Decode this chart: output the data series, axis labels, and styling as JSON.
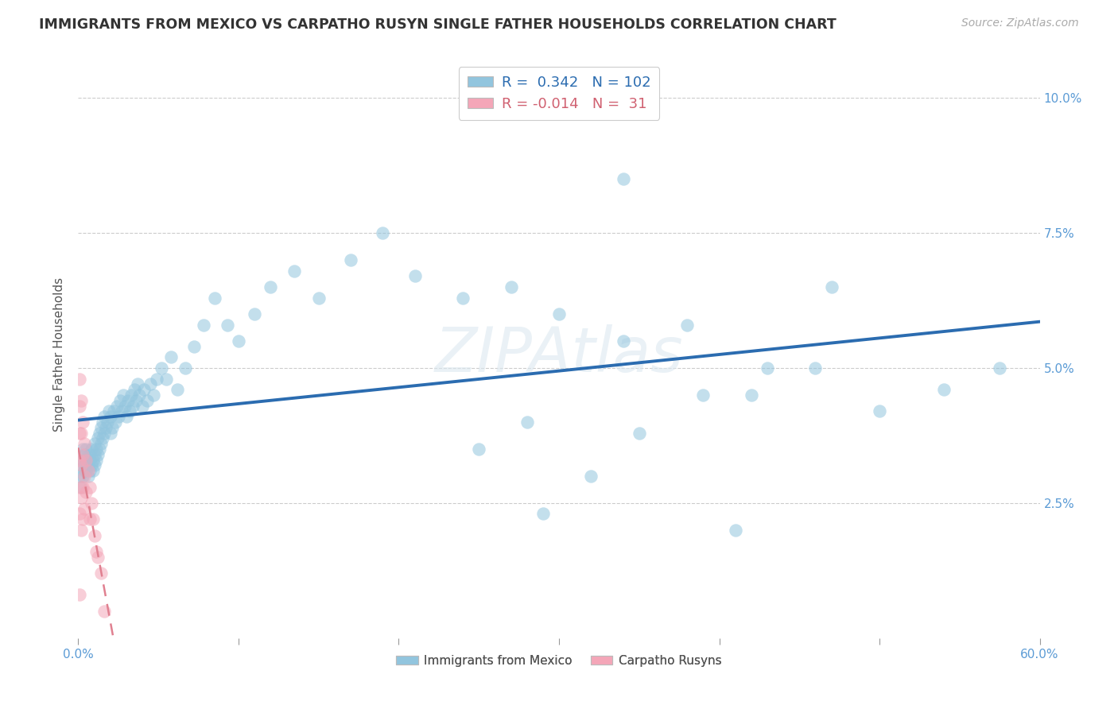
{
  "title": "IMMIGRANTS FROM MEXICO VS CARPATHO RUSYN SINGLE FATHER HOUSEHOLDS CORRELATION CHART",
  "source": "Source: ZipAtlas.com",
  "ylabel": "Single Father Households",
  "xlim": [
    0.0,
    0.6
  ],
  "ylim": [
    0.0,
    0.105
  ],
  "xticks": [
    0.0,
    0.1,
    0.2,
    0.3,
    0.4,
    0.5,
    0.6
  ],
  "yticks": [
    0.025,
    0.05,
    0.075,
    0.1
  ],
  "legend_label1": "Immigrants from Mexico",
  "legend_label2": "Carpatho Rusyns",
  "R1": 0.342,
  "N1": 102,
  "R2": -0.014,
  "N2": 31,
  "blue_color": "#92c5de",
  "pink_color": "#f4a6b8",
  "line_blue": "#2b6cb0",
  "line_pink": "#f4a6b8",
  "watermark": "ZIPAtlas",
  "blue_x": [
    0.001,
    0.002,
    0.002,
    0.003,
    0.003,
    0.003,
    0.004,
    0.004,
    0.004,
    0.005,
    0.005,
    0.005,
    0.006,
    0.006,
    0.007,
    0.007,
    0.007,
    0.008,
    0.008,
    0.009,
    0.009,
    0.01,
    0.01,
    0.01,
    0.011,
    0.011,
    0.012,
    0.012,
    0.013,
    0.013,
    0.014,
    0.014,
    0.015,
    0.015,
    0.016,
    0.016,
    0.017,
    0.018,
    0.019,
    0.02,
    0.02,
    0.021,
    0.022,
    0.023,
    0.024,
    0.025,
    0.026,
    0.027,
    0.028,
    0.029,
    0.03,
    0.031,
    0.032,
    0.033,
    0.034,
    0.035,
    0.036,
    0.037,
    0.038,
    0.04,
    0.041,
    0.043,
    0.045,
    0.047,
    0.049,
    0.052,
    0.055,
    0.058,
    0.062,
    0.067,
    0.072,
    0.078,
    0.085,
    0.093,
    0.1,
    0.11,
    0.12,
    0.135,
    0.15,
    0.17,
    0.19,
    0.21,
    0.24,
    0.27,
    0.3,
    0.34,
    0.38,
    0.42,
    0.46,
    0.5,
    0.54,
    0.575,
    0.34,
    0.47,
    0.39,
    0.43,
    0.35,
    0.28,
    0.32,
    0.25,
    0.29,
    0.41
  ],
  "blue_y": [
    0.03,
    0.032,
    0.028,
    0.035,
    0.033,
    0.03,
    0.031,
    0.034,
    0.032,
    0.033,
    0.031,
    0.035,
    0.03,
    0.032,
    0.033,
    0.031,
    0.034,
    0.032,
    0.035,
    0.031,
    0.033,
    0.034,
    0.032,
    0.036,
    0.033,
    0.035,
    0.034,
    0.037,
    0.035,
    0.038,
    0.036,
    0.039,
    0.037,
    0.04,
    0.038,
    0.041,
    0.039,
    0.04,
    0.042,
    0.038,
    0.041,
    0.039,
    0.042,
    0.04,
    0.043,
    0.041,
    0.044,
    0.042,
    0.045,
    0.043,
    0.041,
    0.044,
    0.042,
    0.045,
    0.043,
    0.046,
    0.044,
    0.047,
    0.045,
    0.043,
    0.046,
    0.044,
    0.047,
    0.045,
    0.048,
    0.05,
    0.048,
    0.052,
    0.046,
    0.05,
    0.054,
    0.058,
    0.063,
    0.058,
    0.055,
    0.06,
    0.065,
    0.068,
    0.063,
    0.07,
    0.075,
    0.067,
    0.063,
    0.065,
    0.06,
    0.055,
    0.058,
    0.045,
    0.05,
    0.042,
    0.046,
    0.05,
    0.085,
    0.065,
    0.045,
    0.05,
    0.038,
    0.04,
    0.03,
    0.035,
    0.023,
    0.02
  ],
  "pink_x": [
    0.001,
    0.001,
    0.001,
    0.001,
    0.001,
    0.001,
    0.001,
    0.002,
    0.002,
    0.002,
    0.002,
    0.002,
    0.003,
    0.003,
    0.003,
    0.003,
    0.004,
    0.004,
    0.004,
    0.005,
    0.005,
    0.006,
    0.007,
    0.007,
    0.008,
    0.009,
    0.01,
    0.011,
    0.012,
    0.014,
    0.016
  ],
  "pink_y": [
    0.048,
    0.043,
    0.038,
    0.033,
    0.028,
    0.023,
    0.008,
    0.044,
    0.038,
    0.032,
    0.026,
    0.02,
    0.04,
    0.034,
    0.028,
    0.022,
    0.036,
    0.03,
    0.024,
    0.033,
    0.027,
    0.031,
    0.028,
    0.022,
    0.025,
    0.022,
    0.019,
    0.016,
    0.015,
    0.012,
    0.005
  ]
}
